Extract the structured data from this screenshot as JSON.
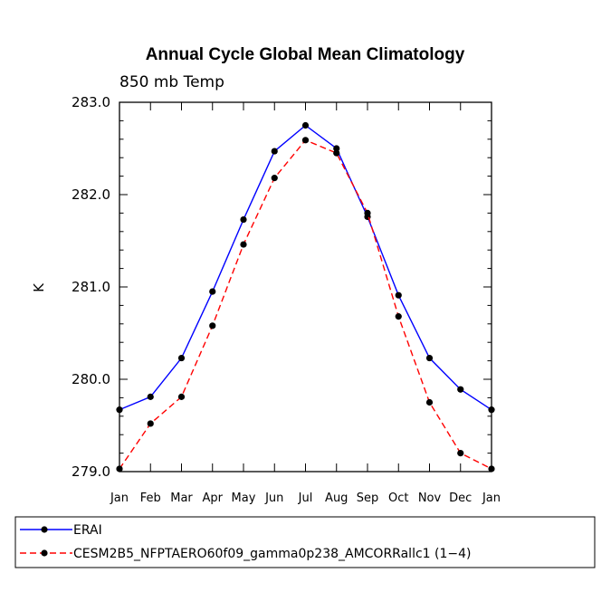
{
  "chart_data": {
    "type": "line",
    "title": "Annual Cycle Global Mean Climatology",
    "subtitle": "850 mb Temp",
    "xlabel": "",
    "ylabel": "K",
    "categories": [
      "Jan",
      "Feb",
      "Mar",
      "Apr",
      "May",
      "Jun",
      "Jul",
      "Aug",
      "Sep",
      "Oct",
      "Nov",
      "Dec",
      "Jan"
    ],
    "ylim": [
      279.0,
      283.0
    ],
    "yticks": [
      "279.0",
      "280.0",
      "281.0",
      "282.0",
      "283.0"
    ],
    "series": [
      {
        "name": "ERAI",
        "color": "#0000ff",
        "dash": "solid",
        "values": [
          279.67,
          279.81,
          280.23,
          280.95,
          281.73,
          282.47,
          282.75,
          282.5,
          281.76,
          280.91,
          280.23,
          279.89,
          279.67
        ]
      },
      {
        "name": "CESM2B5_NFPTAERO60f09_gamma0p238_AMCORRallc1 (1−4)",
        "color": "#ff0000",
        "dash": "dashed",
        "values": [
          279.03,
          279.52,
          279.81,
          280.58,
          281.46,
          282.18,
          282.59,
          282.45,
          281.8,
          280.68,
          279.75,
          279.2,
          279.03
        ]
      }
    ],
    "legend_position": "bottom"
  }
}
